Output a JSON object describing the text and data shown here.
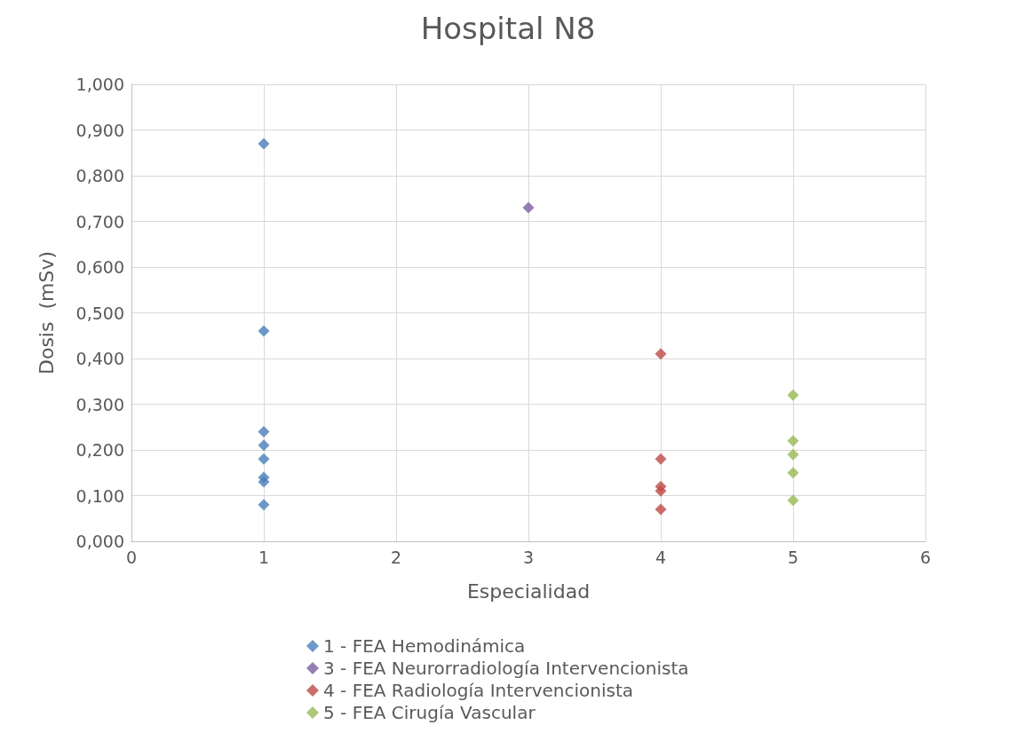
{
  "chart_data": {
    "type": "scatter",
    "title": "Hospital N8",
    "xlabel": "Especialidad",
    "ylabel": "Dosis  (mSv)",
    "xlim": [
      0,
      6
    ],
    "xticks": [
      0,
      1,
      2,
      3,
      4,
      5,
      6
    ],
    "ylim": [
      0,
      1
    ],
    "yticks": [
      {
        "value": 0,
        "label": "0,000"
      },
      {
        "value": 0.1,
        "label": "0,100"
      },
      {
        "value": 0.2,
        "label": "0,200"
      },
      {
        "value": 0.3,
        "label": "0,300"
      },
      {
        "value": 0.4,
        "label": "0,400"
      },
      {
        "value": 0.5,
        "label": "0,500"
      },
      {
        "value": 0.6,
        "label": "0,600"
      },
      {
        "value": 0.7,
        "label": "0,700"
      },
      {
        "value": 0.8,
        "label": "0,800"
      },
      {
        "value": 0.9,
        "label": "0,900"
      },
      {
        "value": 1,
        "label": "1,000"
      }
    ],
    "grid": true,
    "legend": "bottom",
    "marker": "diamond",
    "series": [
      {
        "name": "1 - FEA Hemodinámica",
        "color": "#4a7ebb",
        "x": [
          1,
          1,
          1,
          1,
          1,
          1,
          1,
          1
        ],
        "values": [
          0.87,
          0.46,
          0.24,
          0.21,
          0.18,
          0.14,
          0.13,
          0.08
        ]
      },
      {
        "name": "3 - FEA Neurorradiología Intervencionista",
        "color": "#7d5fa0",
        "x": [
          3
        ],
        "values": [
          0.73
        ]
      },
      {
        "name": "4 - FEA Radiología Intervencionista",
        "color": "#be4b48",
        "x": [
          4,
          4,
          4,
          4,
          4
        ],
        "values": [
          0.41,
          0.18,
          0.12,
          0.11,
          0.07
        ]
      },
      {
        "name": "5 - FEA Cirugía Vascular",
        "color": "#98b954",
        "x": [
          5,
          5,
          5,
          5,
          5
        ],
        "values": [
          0.32,
          0.22,
          0.19,
          0.15,
          0.09
        ]
      }
    ]
  }
}
